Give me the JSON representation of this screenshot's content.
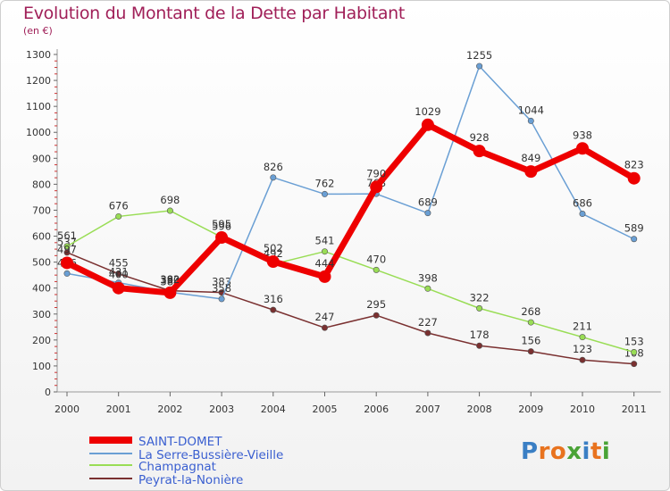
{
  "title": "Evolution du Montant de la Dette par Habitant",
  "unit_label": "(en €)",
  "logo": {
    "letters": [
      "P",
      "r",
      "o",
      "x",
      "i",
      "t",
      "i"
    ],
    "colors": [
      "#3a7fc4",
      "#e8731f",
      "#e8731f",
      "#4aa337",
      "#3a7fc4",
      "#e8731f",
      "#4aa337"
    ]
  },
  "chart_data": {
    "type": "line",
    "title": "Evolution du Montant de la Dette par Habitant",
    "ylabel": "(en €)",
    "xlabel": "",
    "ylim": [
      0,
      1300
    ],
    "yticks": [
      0,
      100,
      200,
      300,
      400,
      500,
      600,
      700,
      800,
      900,
      1000,
      1100,
      1200,
      1300
    ],
    "grid": false,
    "legend_position": "bottom-left",
    "categories": [
      "2000",
      "2001",
      "2002",
      "2003",
      "2004",
      "2005",
      "2006",
      "2007",
      "2008",
      "2009",
      "2010",
      "2011"
    ],
    "series": [
      {
        "name": "SAINT-DOMET",
        "color": "#ee0000",
        "emphasis": true,
        "values": [
          497,
          400,
          382,
          595,
          502,
          444,
          790,
          1029,
          928,
          849,
          938,
          823
        ]
      },
      {
        "name": "La Serre-Bussière-Vieille",
        "color": "#6a9fd4",
        "values": [
          456,
          421,
          384,
          358,
          826,
          762,
          763,
          689,
          1255,
          1044,
          686,
          589
        ]
      },
      {
        "name": "Champagnat",
        "color": "#99dd55",
        "values": [
          561,
          676,
          698,
          596,
          492,
          541,
          470,
          398,
          322,
          268,
          211,
          153
        ]
      },
      {
        "name": "Peyrat-la-Nonière",
        "color": "#7a3030",
        "values": [
          537,
          455,
          390,
          383,
          316,
          247,
          295,
          227,
          178,
          156,
          123,
          108
        ]
      }
    ]
  }
}
